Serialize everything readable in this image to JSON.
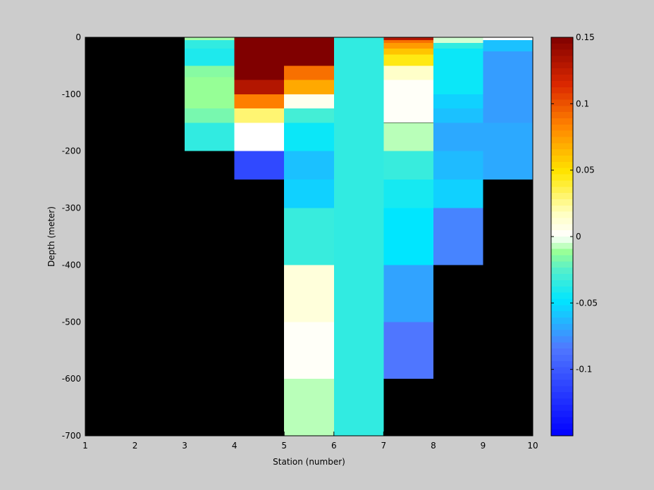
{
  "chart_data": {
    "type": "heatmap",
    "xlabel": "Station (number)",
    "ylabel": "Depth (meter)",
    "xlim": [
      1,
      10
    ],
    "ylim": [
      -700,
      0
    ],
    "xticks": [
      1,
      2,
      3,
      4,
      5,
      6,
      7,
      8,
      9,
      10
    ],
    "yticks": [
      0,
      -100,
      -200,
      -300,
      -400,
      -500,
      -600,
      -700
    ],
    "background_color": "#000000",
    "colorbar": {
      "min": -0.15,
      "max": 0.15,
      "ticks": [
        0.15,
        0.1,
        0.05,
        0,
        -0.05,
        -0.1
      ],
      "tick_labels": [
        "0.15",
        "0.1",
        "0.05",
        "0",
        "-0.05",
        "-0.1"
      ],
      "colormap": "jet-white-centered"
    },
    "columns": [
      {
        "station_from": 3,
        "station_to": 4,
        "cells": [
          {
            "top": 0,
            "bottom": -5,
            "value": -0.01
          },
          {
            "top": -5,
            "bottom": -20,
            "value": -0.035
          },
          {
            "top": -20,
            "bottom": -50,
            "value": -0.04
          },
          {
            "top": -50,
            "bottom": -70,
            "value": -0.015
          },
          {
            "top": -70,
            "bottom": -125,
            "value": -0.012
          },
          {
            "top": -125,
            "bottom": -150,
            "value": -0.018
          },
          {
            "top": -150,
            "bottom": -200,
            "value": -0.035
          }
        ]
      },
      {
        "station_from": 4,
        "station_to": 5,
        "cells": [
          {
            "top": 0,
            "bottom": -75,
            "value": 0.15
          },
          {
            "top": -75,
            "bottom": -100,
            "value": 0.13
          },
          {
            "top": -100,
            "bottom": -125,
            "value": 0.085
          },
          {
            "top": -125,
            "bottom": -150,
            "value": 0.03
          },
          {
            "top": -150,
            "bottom": -200,
            "value": 0.0
          },
          {
            "top": -200,
            "bottom": -250,
            "value": -0.11
          }
        ]
      },
      {
        "station_from": 5,
        "station_to": 6,
        "cells": [
          {
            "top": 0,
            "bottom": -50,
            "value": 0.15
          },
          {
            "top": -50,
            "bottom": -75,
            "value": 0.09
          },
          {
            "top": -75,
            "bottom": -100,
            "value": 0.07
          },
          {
            "top": -100,
            "bottom": -125,
            "value": 0.005
          },
          {
            "top": -125,
            "bottom": -150,
            "value": -0.03
          },
          {
            "top": -150,
            "bottom": -200,
            "value": -0.045
          },
          {
            "top": -200,
            "bottom": -250,
            "value": -0.06
          },
          {
            "top": -250,
            "bottom": -300,
            "value": -0.055
          },
          {
            "top": -300,
            "bottom": -400,
            "value": -0.033
          },
          {
            "top": -400,
            "bottom": -500,
            "value": 0.01
          },
          {
            "top": -500,
            "bottom": -600,
            "value": 0.002
          },
          {
            "top": -600,
            "bottom": -700,
            "value": -0.008
          }
        ]
      },
      {
        "station_from": 6,
        "station_to": 7,
        "cells": [
          {
            "top": 0,
            "bottom": -700,
            "value": -0.035
          }
        ]
      },
      {
        "station_from": 7,
        "station_to": 8,
        "cells": [
          {
            "top": 0,
            "bottom": -5,
            "value": 0.13
          },
          {
            "top": -5,
            "bottom": -10,
            "value": 0.09
          },
          {
            "top": -10,
            "bottom": -20,
            "value": 0.075
          },
          {
            "top": -20,
            "bottom": -30,
            "value": 0.06
          },
          {
            "top": -30,
            "bottom": -50,
            "value": 0.045
          },
          {
            "top": -50,
            "bottom": -75,
            "value": 0.015
          },
          {
            "top": -75,
            "bottom": -150,
            "value": 0.002
          },
          {
            "top": -150,
            "bottom": -200,
            "value": -0.008
          },
          {
            "top": -200,
            "bottom": -250,
            "value": -0.033
          },
          {
            "top": -250,
            "bottom": -300,
            "value": -0.042
          },
          {
            "top": -300,
            "bottom": -400,
            "value": -0.048
          },
          {
            "top": -400,
            "bottom": -500,
            "value": -0.07
          },
          {
            "top": -500,
            "bottom": -600,
            "value": -0.085
          }
        ]
      },
      {
        "station_from": 8,
        "station_to": 9,
        "cells": [
          {
            "top": 0,
            "bottom": -10,
            "value": -0.005
          },
          {
            "top": -10,
            "bottom": -20,
            "value": -0.035
          },
          {
            "top": -20,
            "bottom": -100,
            "value": -0.045
          },
          {
            "top": -100,
            "bottom": -125,
            "value": -0.055
          },
          {
            "top": -125,
            "bottom": -150,
            "value": -0.06
          },
          {
            "top": -150,
            "bottom": -200,
            "value": -0.068
          },
          {
            "top": -200,
            "bottom": -250,
            "value": -0.062
          },
          {
            "top": -250,
            "bottom": -300,
            "value": -0.055
          },
          {
            "top": -300,
            "bottom": -400,
            "value": -0.08
          }
        ]
      },
      {
        "station_from": 9,
        "station_to": 10,
        "cells": [
          {
            "top": 0,
            "bottom": -5,
            "value": 0.0
          },
          {
            "top": -5,
            "bottom": -25,
            "value": -0.06
          },
          {
            "top": -25,
            "bottom": -150,
            "value": -0.072
          },
          {
            "top": -150,
            "bottom": -250,
            "value": -0.068
          }
        ]
      }
    ]
  }
}
